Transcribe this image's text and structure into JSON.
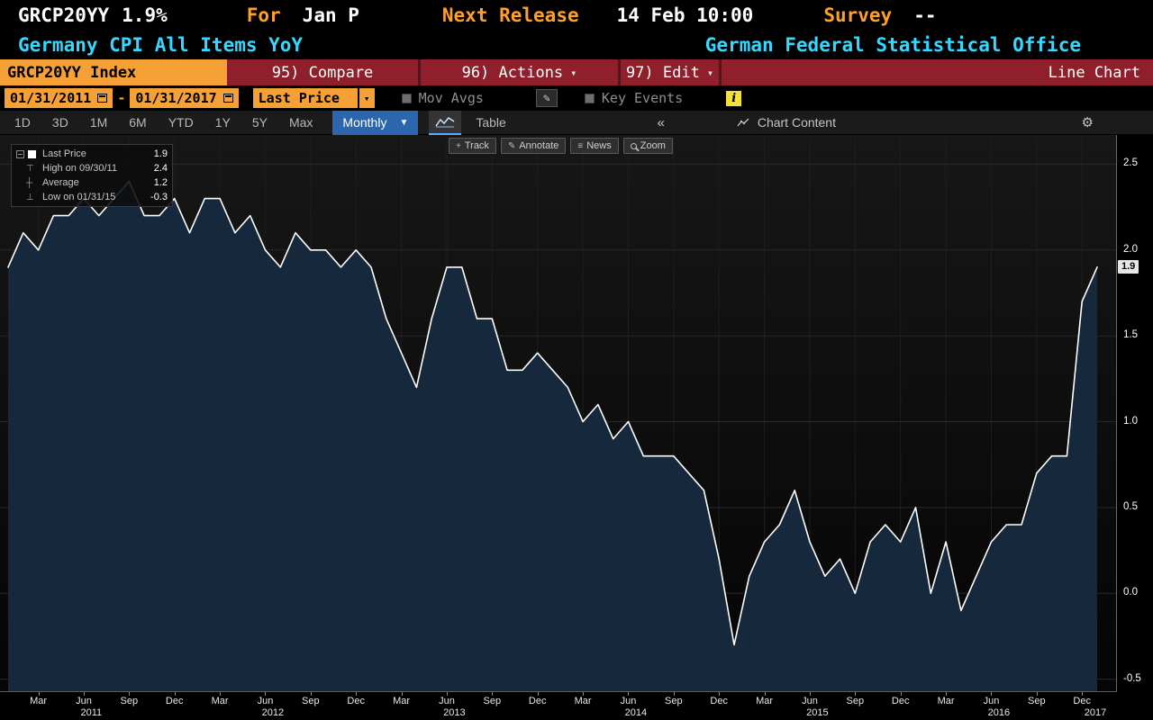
{
  "theme": {
    "amber_box": "#f5a136",
    "amber_text": "#ffa028",
    "cyan": "#35d8ff",
    "banner_red": "#8e1f2b",
    "selected_blue": "#2c66ae",
    "line_color": "#ffffff",
    "area_fill": "#16283c"
  },
  "icons": {
    "chevron_down": "▾",
    "dropdown_down": "▼",
    "collapse_left": "«",
    "gear": "⚙",
    "pencil": "✎",
    "news": "≡",
    "crosshair": "+",
    "info": "i",
    "high_marker": "⊤",
    "average_marker": "┼",
    "low_marker": "⊥"
  },
  "quote_bar": {
    "ticker": "GRCP20YY",
    "last": "1.9%",
    "for_label": "For",
    "for_value": "Jan P",
    "next_release_label": "Next Release",
    "next_release_value": "14 Feb 10:00",
    "survey_label": "Survey",
    "survey_value": "--",
    "name": "Germany CPI All Items YoY",
    "source": "German Federal Statistical Office"
  },
  "menu_bar": {
    "security": "GRCP20YY Index",
    "compare": "95) Compare",
    "actions": "96) Actions",
    "edit": "97) Edit",
    "view_title": "Line Chart"
  },
  "control_bar": {
    "date_from": "01/31/2011",
    "date_separator": "-",
    "date_to": "01/31/2017",
    "field": "Last Price",
    "mov_avgs_label": "Mov Avgs",
    "key_events_label": "Key Events"
  },
  "tab_bar": {
    "periods": [
      "1D",
      "3D",
      "1M",
      "6M",
      "YTD",
      "1Y",
      "5Y",
      "Max"
    ],
    "frequency": "Monthly",
    "table_label": "Table",
    "chart_content_label": "Chart Content"
  },
  "chart_tools": [
    {
      "label": "Track",
      "icon": "crosshair-icon"
    },
    {
      "label": "Annotate",
      "icon": "pencil-icon"
    },
    {
      "label": "News",
      "icon": "news-icon"
    },
    {
      "label": "Zoom",
      "icon": "zoom-icon"
    }
  ],
  "legend": {
    "series_label": "Last Price",
    "series_value": "1.9",
    "high_label": "High on 09/30/11",
    "high_value": "2.4",
    "avg_label": "Average",
    "avg_value": "1.2",
    "low_label": "Low on 01/31/15",
    "low_value": "-0.3"
  },
  "chart_data": {
    "type": "area",
    "title": "Germany CPI All Items YoY",
    "x_start": "2011-01",
    "x_end": "2017-01",
    "frequency": "monthly",
    "values": [
      1.9,
      2.1,
      2.0,
      2.2,
      2.2,
      2.3,
      2.2,
      2.3,
      2.4,
      2.2,
      2.2,
      2.3,
      2.1,
      2.3,
      2.3,
      2.1,
      2.2,
      2.0,
      1.9,
      2.1,
      2.0,
      2.0,
      1.9,
      2.0,
      1.9,
      1.6,
      1.4,
      1.2,
      1.6,
      1.9,
      1.9,
      1.6,
      1.6,
      1.3,
      1.3,
      1.4,
      1.3,
      1.2,
      1.0,
      1.1,
      0.9,
      1.0,
      0.8,
      0.8,
      0.8,
      0.7,
      0.6,
      0.2,
      -0.3,
      0.1,
      0.3,
      0.4,
      0.6,
      0.3,
      0.1,
      0.2,
      0.0,
      0.3,
      0.4,
      0.3,
      0.5,
      0.0,
      0.3,
      -0.1,
      0.1,
      0.3,
      0.4,
      0.4,
      0.7,
      0.8,
      0.8,
      1.7,
      1.9
    ],
    "ylim": [
      -0.57,
      2.67
    ],
    "yticks": [
      2.5,
      2.0,
      1.5,
      1.0,
      0.5,
      0.0,
      -0.5
    ],
    "last_price": 1.9,
    "last_price_label": "1.9",
    "x_years": [
      {
        "label": "2011",
        "months": [
          "Mar",
          "Jun",
          "Sep",
          "Dec"
        ]
      },
      {
        "label": "2012",
        "months": [
          "Mar",
          "Jun",
          "Sep",
          "Dec"
        ]
      },
      {
        "label": "2013",
        "months": [
          "Mar",
          "Jun",
          "Sep",
          "Dec"
        ]
      },
      {
        "label": "2014",
        "months": [
          "Mar",
          "Jun",
          "Sep",
          "Dec"
        ]
      },
      {
        "label": "2015",
        "months": [
          "Mar",
          "Jun",
          "Sep",
          "Dec"
        ]
      },
      {
        "label": "2016",
        "months": [
          "Mar",
          "Jun",
          "Sep",
          "Dec"
        ]
      },
      {
        "label": "2017",
        "months": []
      }
    ],
    "grid": true,
    "legend_position": "top-left"
  }
}
